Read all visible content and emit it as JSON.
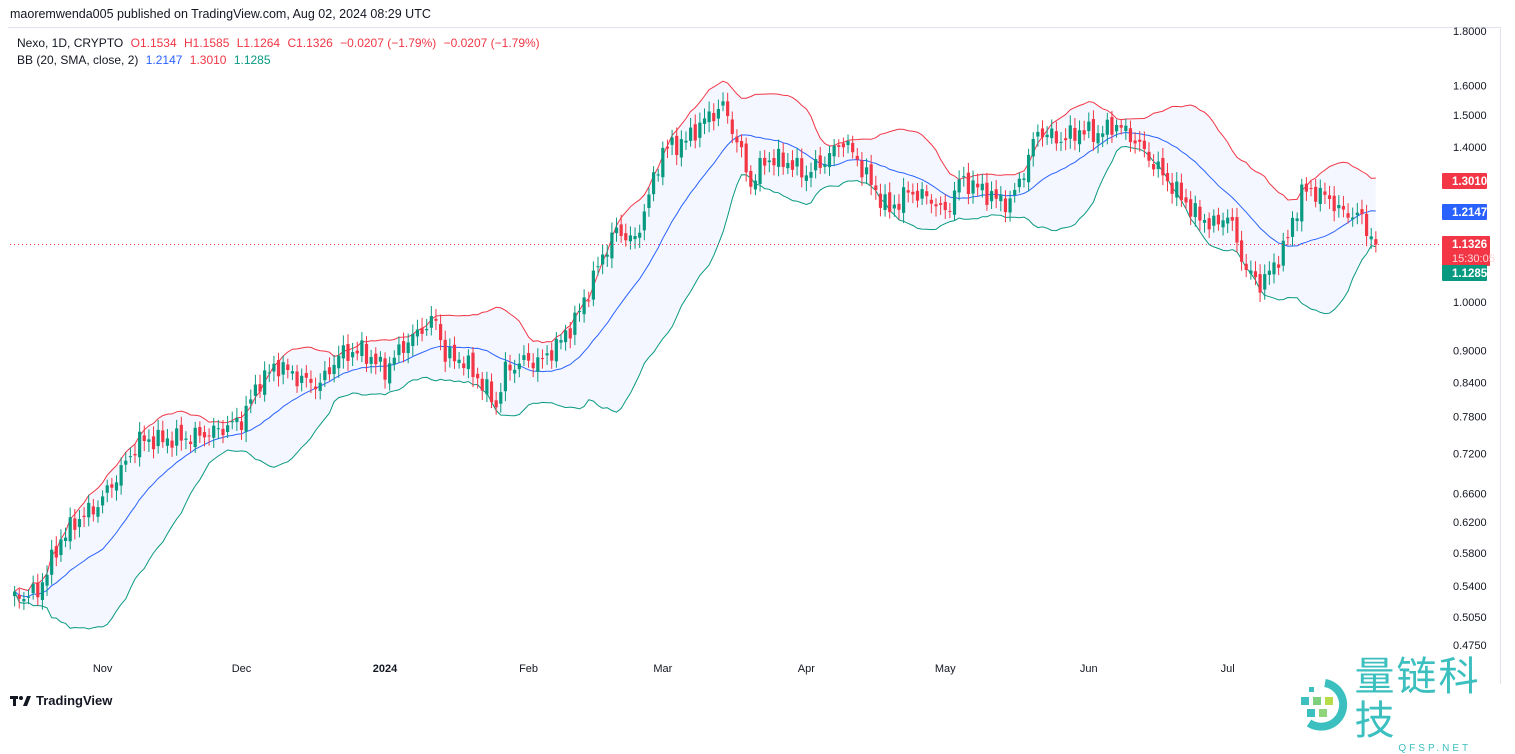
{
  "header": {
    "publisher_line": "maoremwenda005 published on TradingView.com, Aug 02, 2024 08:29 UTC"
  },
  "legend": {
    "symbol": "Nexo, 1D, CRYPTO",
    "open": "O1.1534",
    "high": "H1.1585",
    "low": "L1.1264",
    "close": "C1.1326",
    "change1": "−0.0207 (−1.79%)",
    "change2": "−0.0207 (−1.79%)",
    "bb_label": "BB (20, SMA, close, 2)",
    "bb_basis": "1.2147",
    "bb_upper": "1.3010",
    "bb_lower": "1.1285"
  },
  "footer": {
    "brand": "TradingView"
  },
  "watermark": {
    "text": "量链科技",
    "sub": "QFSP.NET"
  },
  "colors": {
    "up": "#089981",
    "down": "#f23645",
    "basis": "#2962ff",
    "upper": "#f23645",
    "lower": "#089981",
    "fill": "#2962ff"
  },
  "chart_data": {
    "type": "candlestick",
    "scale": "log",
    "ylim": [
      0.46,
      1.85
    ],
    "y_ticks": [
      "1.8000",
      "1.6000",
      "1.5000",
      "1.4000",
      "1.0000",
      "0.9000",
      "0.8400",
      "0.7800",
      "0.7200",
      "0.6600",
      "0.6200",
      "0.5800",
      "0.5400",
      "0.5050",
      "0.4750"
    ],
    "x_ticks": [
      {
        "label": "Nov",
        "date": "2023-11-01"
      },
      {
        "label": "Dec",
        "date": "2023-12-01"
      },
      {
        "label": "2024",
        "date": "2024-01-01"
      },
      {
        "label": "Feb",
        "date": "2024-02-01"
      },
      {
        "label": "Mar",
        "date": "2024-03-01"
      },
      {
        "label": "Apr",
        "date": "2024-04-01"
      },
      {
        "label": "May",
        "date": "2024-05-01"
      },
      {
        "label": "Jun",
        "date": "2024-06-01"
      },
      {
        "label": "Jul",
        "date": "2024-07-01"
      }
    ],
    "approx_closes": [
      [
        "2023-10-13",
        0.526
      ],
      [
        "2023-10-18",
        0.533
      ],
      [
        "2023-10-23",
        0.597
      ],
      [
        "2023-10-26",
        0.62
      ],
      [
        "2023-10-31",
        0.644
      ],
      [
        "2023-11-05",
        0.694
      ],
      [
        "2023-11-09",
        0.741
      ],
      [
        "2023-11-13",
        0.741
      ],
      [
        "2023-11-20",
        0.745
      ],
      [
        "2023-11-26",
        0.757
      ],
      [
        "2023-12-01",
        0.774
      ],
      [
        "2023-12-05",
        0.844
      ],
      [
        "2023-12-09",
        0.872
      ],
      [
        "2023-12-14",
        0.844
      ],
      [
        "2023-12-18",
        0.836
      ],
      [
        "2023-12-22",
        0.891
      ],
      [
        "2023-12-27",
        0.9
      ],
      [
        "2024-01-01",
        0.862
      ],
      [
        "2024-01-05",
        0.91
      ],
      [
        "2024-01-10",
        0.951
      ],
      [
        "2024-01-12",
        0.96
      ],
      [
        "2024-01-14",
        0.89
      ],
      [
        "2024-01-18",
        0.88
      ],
      [
        "2024-01-23",
        0.826
      ],
      [
        "2024-01-25",
        0.798
      ],
      [
        "2024-01-27",
        0.862
      ],
      [
        "2024-01-31",
        0.88
      ],
      [
        "2024-02-04",
        0.88
      ],
      [
        "2024-02-08",
        0.92
      ],
      [
        "2024-02-11",
        0.96
      ],
      [
        "2024-02-14",
        1.026
      ],
      [
        "2024-02-17",
        1.107
      ],
      [
        "2024-02-20",
        1.168
      ],
      [
        "2024-02-24",
        1.14
      ],
      [
        "2024-02-28",
        1.303
      ],
      [
        "2024-03-01",
        1.391
      ],
      [
        "2024-03-06",
        1.42
      ],
      [
        "2024-03-10",
        1.484
      ],
      [
        "2024-03-14",
        1.53
      ],
      [
        "2024-03-17",
        1.42
      ],
      [
        "2024-03-20",
        1.29
      ],
      [
        "2024-03-23",
        1.36
      ],
      [
        "2024-03-27",
        1.36
      ],
      [
        "2024-04-01",
        1.32
      ],
      [
        "2024-04-05",
        1.36
      ],
      [
        "2024-04-09",
        1.42
      ],
      [
        "2024-04-12",
        1.36
      ],
      [
        "2024-04-16",
        1.27
      ],
      [
        "2024-04-19",
        1.22
      ],
      [
        "2024-04-23",
        1.27
      ],
      [
        "2024-04-28",
        1.25
      ],
      [
        "2024-05-01",
        1.21
      ],
      [
        "2024-05-04",
        1.3
      ],
      [
        "2024-05-07",
        1.29
      ],
      [
        "2024-05-12",
        1.25
      ],
      [
        "2024-05-15",
        1.24
      ],
      [
        "2024-05-18",
        1.33
      ],
      [
        "2024-05-21",
        1.45
      ],
      [
        "2024-05-26",
        1.42
      ],
      [
        "2024-05-30",
        1.45
      ],
      [
        "2024-06-03",
        1.44
      ],
      [
        "2024-06-07",
        1.47
      ],
      [
        "2024-06-11",
        1.42
      ],
      [
        "2024-06-15",
        1.35
      ],
      [
        "2024-06-20",
        1.27
      ],
      [
        "2024-06-24",
        1.21
      ],
      [
        "2024-06-28",
        1.18
      ],
      [
        "2024-07-01",
        1.21
      ],
      [
        "2024-07-05",
        1.071
      ],
      [
        "2024-07-08",
        1.04
      ],
      [
        "2024-07-11",
        1.08
      ],
      [
        "2024-07-14",
        1.15
      ],
      [
        "2024-07-17",
        1.27
      ],
      [
        "2024-07-20",
        1.27
      ],
      [
        "2024-07-23",
        1.25
      ],
      [
        "2024-07-26",
        1.21
      ],
      [
        "2024-07-29",
        1.21
      ],
      [
        "2024-08-01",
        1.1534
      ],
      [
        "2024-08-02",
        1.1326
      ]
    ],
    "indicator": {
      "name": "BB",
      "length": 20,
      "ma": "SMA",
      "source": "close",
      "mult": 2
    },
    "last_labels": {
      "upper": "1.3010",
      "basis": "1.2147",
      "close": "1.1326",
      "countdown": "15:30:05",
      "lower": "1.1285"
    },
    "grid": false
  }
}
